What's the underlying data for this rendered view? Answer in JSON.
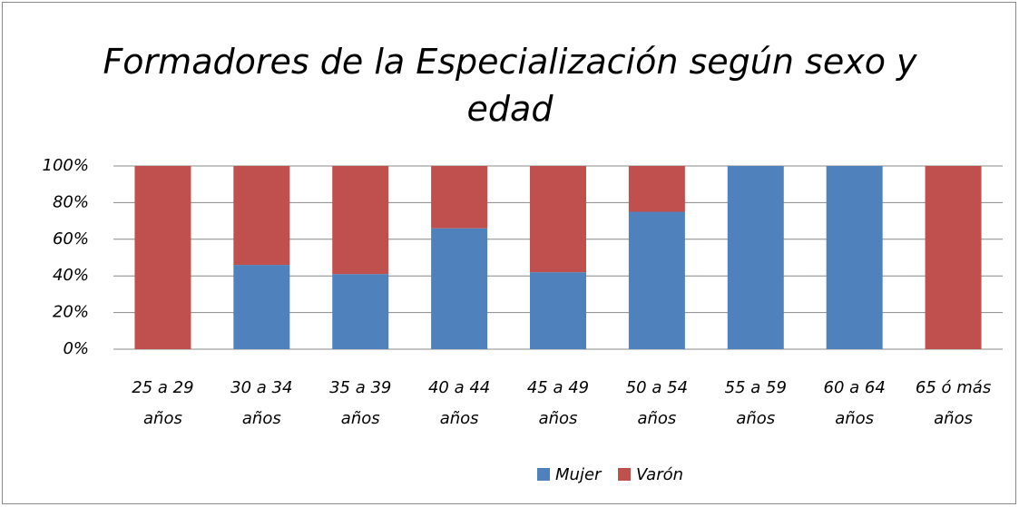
{
  "chart_data": {
    "type": "stacked_bar",
    "title": "Formadores de la Especialización según sexo y edad",
    "categories": [
      "25 a 29 años",
      "30 a 34 años",
      "35 a 39 años",
      "40 a 44 años",
      "45 a 49 años",
      "50 a 54 años",
      "55 a 59 años",
      "60 a 64 años",
      "65 ó más años"
    ],
    "series": [
      {
        "name": "Mujer",
        "color": "#4f81bd",
        "values": [
          0,
          46,
          41,
          66,
          42,
          75,
          100,
          100,
          0
        ]
      },
      {
        "name": "Varón",
        "color": "#c0504d",
        "values": [
          100,
          54,
          59,
          34,
          58,
          25,
          0,
          0,
          100
        ]
      }
    ],
    "ylim": [
      0,
      100
    ],
    "yticks": [
      {
        "value": 0,
        "label": "0%"
      },
      {
        "value": 20,
        "label": "20%"
      },
      {
        "value": 40,
        "label": "40%"
      },
      {
        "value": 60,
        "label": "60%"
      },
      {
        "value": 80,
        "label": "80%"
      },
      {
        "value": 100,
        "label": "100%"
      }
    ],
    "grid": true,
    "legend": "bottom"
  }
}
